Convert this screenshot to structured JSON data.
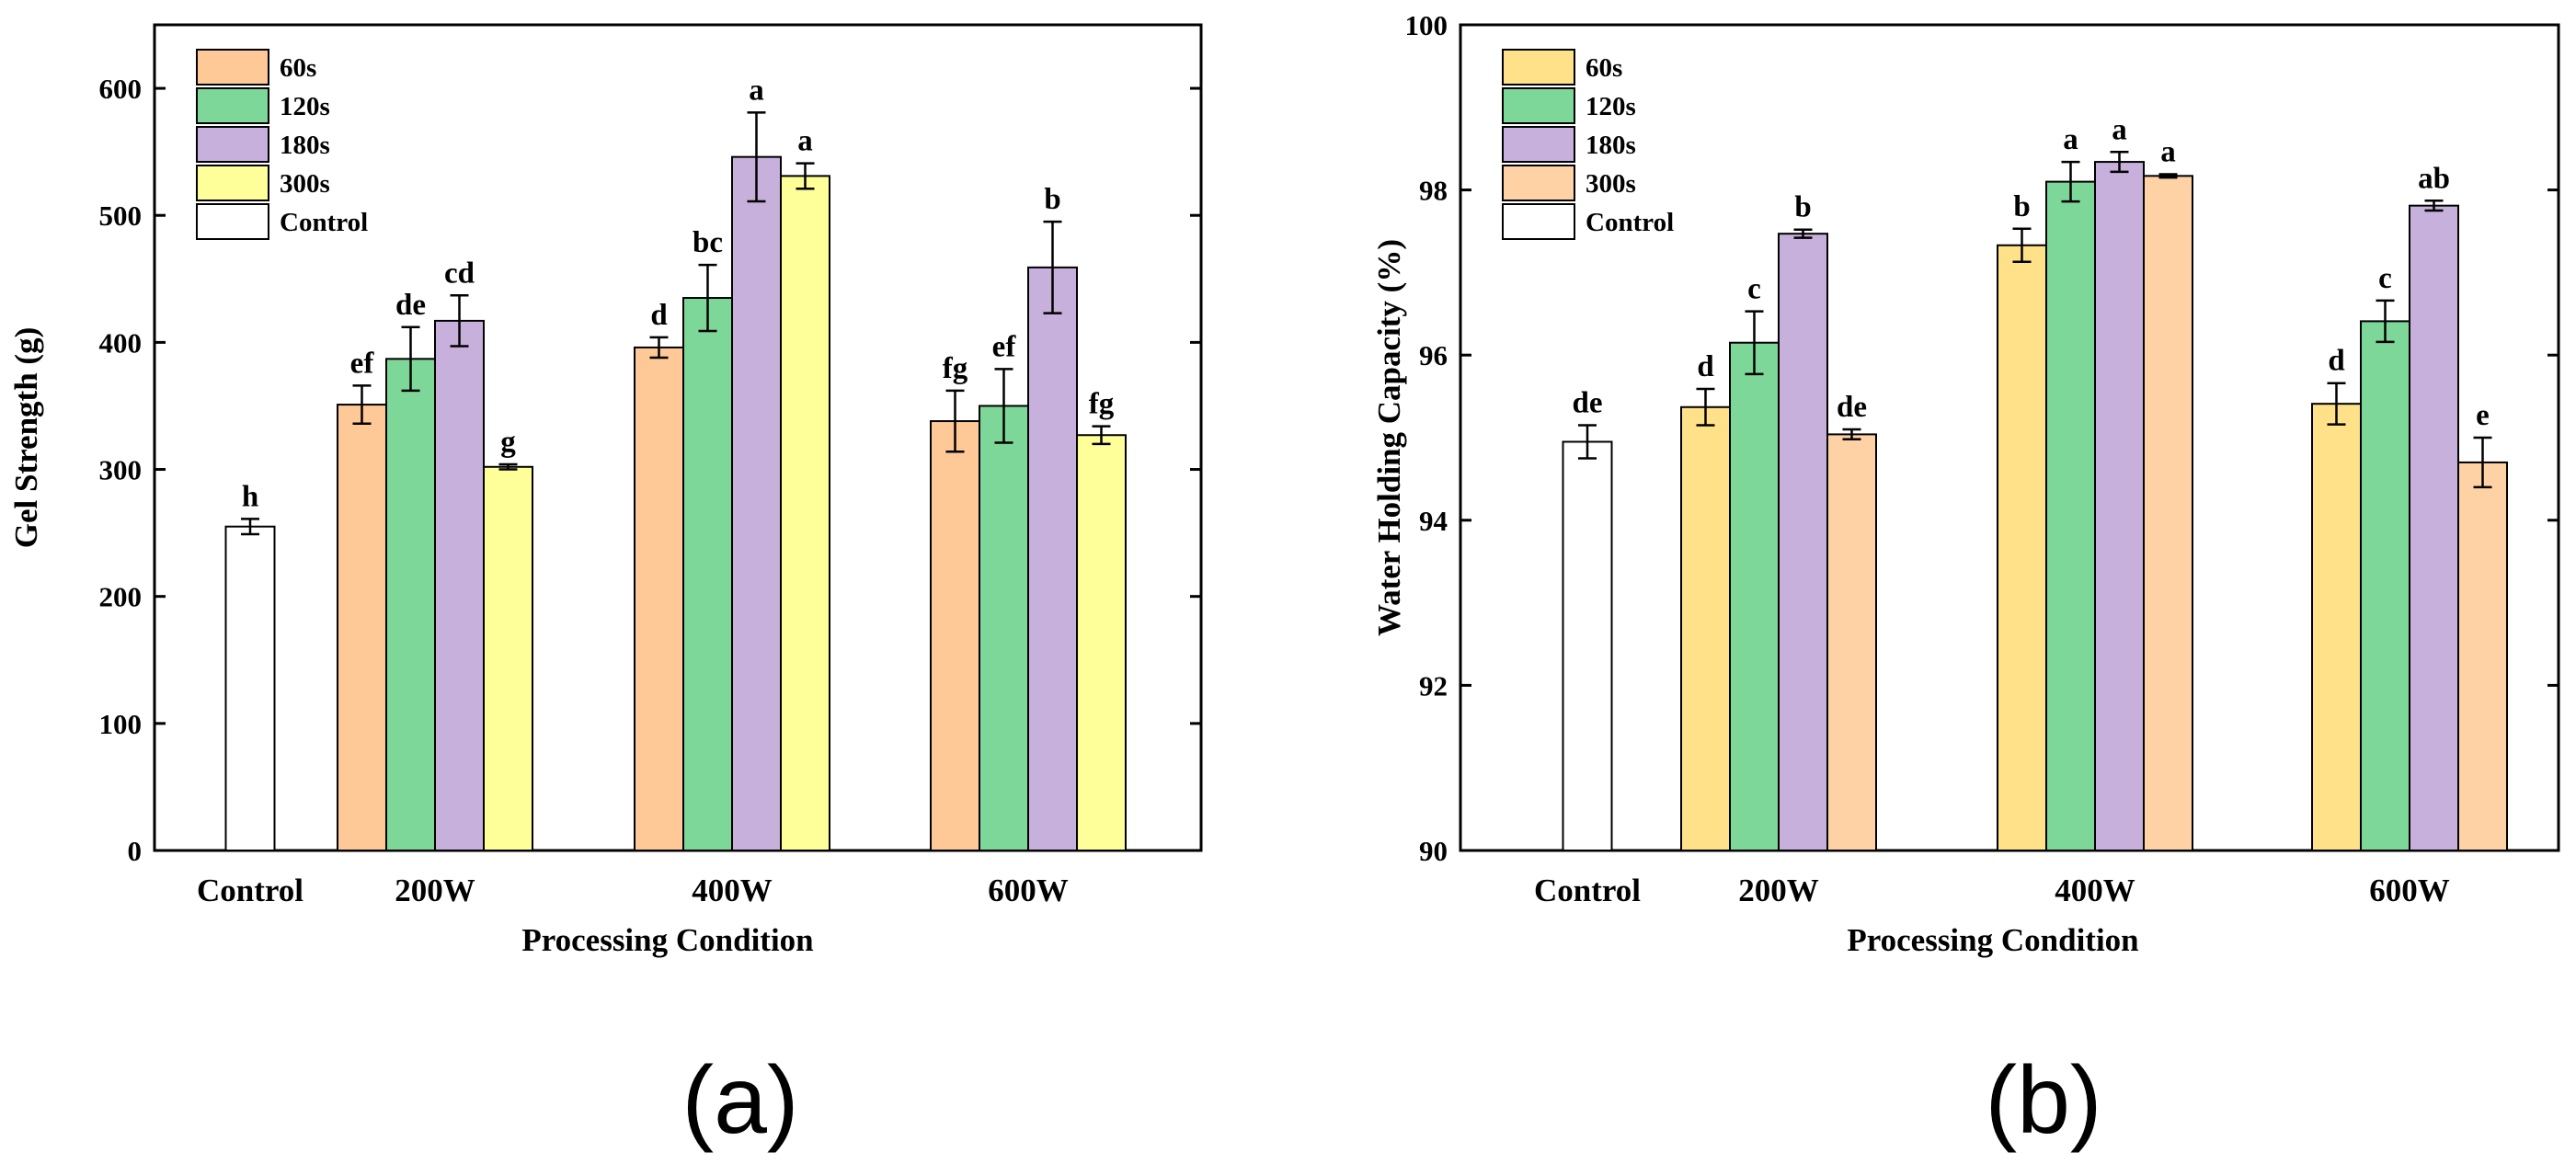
{
  "figure": {
    "panels": [
      "(a)",
      "(b)"
    ]
  },
  "chart_data": [
    {
      "type": "bar",
      "panel_label": "(a)",
      "title": "",
      "xlabel": "Processing Condition",
      "ylabel": "Gel Strength (g)",
      "ylim": [
        0,
        650
      ],
      "yticks": [
        0,
        100,
        200,
        300,
        400,
        500,
        600
      ],
      "grid": false,
      "legend_position": "top-left",
      "categories": [
        "Control",
        "200W",
        "400W",
        "600W"
      ],
      "legend": [
        {
          "name": "60s",
          "color": "#FFC897"
        },
        {
          "name": "120s",
          "color": "#7DD798"
        },
        {
          "name": "180s",
          "color": "#C7B0DB"
        },
        {
          "name": "300s",
          "color": "#FFFF99"
        },
        {
          "name": "Control",
          "color": "#FFFFFF"
        }
      ],
      "bars": [
        {
          "category": "Control",
          "series": "Control",
          "value": 255,
          "error": 6,
          "label": "h"
        },
        {
          "category": "200W",
          "series": "60s",
          "value": 351,
          "error": 15,
          "label": "ef"
        },
        {
          "category": "200W",
          "series": "120s",
          "value": 387,
          "error": 25,
          "label": "de"
        },
        {
          "category": "200W",
          "series": "180s",
          "value": 417,
          "error": 20,
          "label": "cd"
        },
        {
          "category": "200W",
          "series": "300s",
          "value": 302,
          "error": 2,
          "label": "g"
        },
        {
          "category": "400W",
          "series": "60s",
          "value": 396,
          "error": 8,
          "label": "d"
        },
        {
          "category": "400W",
          "series": "120s",
          "value": 435,
          "error": 26,
          "label": "bc"
        },
        {
          "category": "400W",
          "series": "180s",
          "value": 546,
          "error": 35,
          "label": "a"
        },
        {
          "category": "400W",
          "series": "300s",
          "value": 531,
          "error": 10,
          "label": "a"
        },
        {
          "category": "600W",
          "series": "60s",
          "value": 338,
          "error": 24,
          "label": "fg"
        },
        {
          "category": "600W",
          "series": "120s",
          "value": 350,
          "error": 29,
          "label": "ef"
        },
        {
          "category": "600W",
          "series": "180s",
          "value": 459,
          "error": 36,
          "label": "b"
        },
        {
          "category": "600W",
          "series": "300s",
          "value": 327,
          "error": 7,
          "label": "fg"
        }
      ]
    },
    {
      "type": "bar",
      "panel_label": "(b)",
      "title": "",
      "xlabel": "Processing Condition",
      "ylabel": "Water Holding Capacity (%)",
      "ylim": [
        90,
        100
      ],
      "yticks": [
        90,
        92,
        94,
        96,
        98,
        100
      ],
      "grid": false,
      "legend_position": "top-left",
      "categories": [
        "Control",
        "200W",
        "400W",
        "600W"
      ],
      "legend": [
        {
          "name": "60s",
          "color": "#FFE189"
        },
        {
          "name": "120s",
          "color": "#7DD798"
        },
        {
          "name": "180s",
          "color": "#C7B0DB"
        },
        {
          "name": "300s",
          "color": "#FFD2A6"
        },
        {
          "name": "Control",
          "color": "#FFFFFF"
        }
      ],
      "bars": [
        {
          "category": "Control",
          "series": "Control",
          "value": 94.95,
          "error": 0.2,
          "label": "de"
        },
        {
          "category": "200W",
          "series": "60s",
          "value": 95.37,
          "error": 0.22,
          "label": "d"
        },
        {
          "category": "200W",
          "series": "120s",
          "value": 96.15,
          "error": 0.38,
          "label": "c"
        },
        {
          "category": "200W",
          "series": "180s",
          "value": 97.47,
          "error": 0.05,
          "label": "b"
        },
        {
          "category": "200W",
          "series": "300s",
          "value": 95.04,
          "error": 0.06,
          "label": "de"
        },
        {
          "category": "400W",
          "series": "60s",
          "value": 97.33,
          "error": 0.2,
          "label": "b"
        },
        {
          "category": "400W",
          "series": "120s",
          "value": 98.1,
          "error": 0.24,
          "label": "a"
        },
        {
          "category": "400W",
          "series": "180s",
          "value": 98.34,
          "error": 0.12,
          "label": "a"
        },
        {
          "category": "400W",
          "series": "300s",
          "value": 98.17,
          "error": 0.02,
          "label": "a"
        },
        {
          "category": "600W",
          "series": "60s",
          "value": 95.41,
          "error": 0.25,
          "label": "d"
        },
        {
          "category": "600W",
          "series": "120s",
          "value": 96.41,
          "error": 0.25,
          "label": "c"
        },
        {
          "category": "600W",
          "series": "180s",
          "value": 97.81,
          "error": 0.06,
          "label": "ab"
        },
        {
          "category": "600W",
          "series": "300s",
          "value": 94.7,
          "error": 0.3,
          "label": "e"
        }
      ]
    }
  ]
}
